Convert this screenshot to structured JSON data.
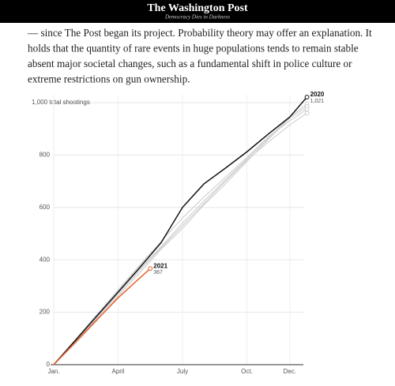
{
  "header": {
    "title": "The Washington Post",
    "tagline": "Democracy Dies in Darkness"
  },
  "article": {
    "lines": [
      "— since The Post began its project. Probability theory may offer an explanation. It",
      "holds that the quantity of rare events in huge populations tends to remain stable",
      "absent major societal changes, such as a fundamental shift in police culture or",
      "extreme restrictions on gun ownership."
    ]
  },
  "chart_data": {
    "type": "line",
    "xlim": [
      0,
      12
    ],
    "xticks": [
      {
        "value": 0,
        "label": "Jan."
      },
      {
        "value": 3,
        "label": "April"
      },
      {
        "value": 6,
        "label": "July"
      },
      {
        "value": 9,
        "label": "Oct."
      },
      {
        "value": 11,
        "label": "Dec."
      }
    ],
    "ylim": [
      0,
      1030
    ],
    "yticks": [
      0,
      200,
      400,
      600,
      800,
      {
        "value": 1000,
        "label": "1,000 total shootings"
      }
    ],
    "grid": true,
    "series": [
      {
        "color": "#cfcfcf",
        "x": [
          0,
          1,
          2,
          3,
          4,
          5,
          6,
          7,
          8,
          9,
          10,
          11,
          11.8
        ],
        "values": [
          0,
          88,
          178,
          272,
          365,
          450,
          540,
          625,
          705,
          785,
          865,
          945,
          995
        ]
      },
      {
        "color": "#cfcfcf",
        "x": [
          0,
          1,
          2,
          3,
          4,
          5,
          6,
          7,
          8,
          9,
          10,
          11,
          11.8
        ],
        "values": [
          0,
          80,
          168,
          262,
          350,
          440,
          520,
          610,
          690,
          775,
          860,
          940,
          985
        ]
      },
      {
        "color": "#cfcfcf",
        "x": [
          0,
          1,
          2,
          3,
          4,
          5,
          6,
          7,
          8,
          9,
          10,
          11,
          11.8
        ],
        "values": [
          0,
          95,
          190,
          285,
          380,
          470,
          560,
          640,
          715,
          790,
          870,
          930,
          975
        ]
      },
      {
        "color": "#cfcfcf",
        "x": [
          0,
          1,
          2,
          3,
          4,
          5,
          6,
          7,
          8,
          9,
          10,
          11,
          11.8
        ],
        "values": [
          0,
          85,
          175,
          270,
          360,
          445,
          530,
          615,
          700,
          780,
          850,
          915,
          960
        ]
      },
      {
        "name": "2020",
        "color": "#111111",
        "x": [
          0,
          1,
          2,
          3,
          4,
          5,
          6,
          7,
          8,
          9,
          10,
          11,
          11.8
        ],
        "values": [
          0,
          92,
          185,
          277,
          370,
          465,
          600,
          690,
          750,
          812,
          880,
          945,
          1021
        ],
        "value_labels": [
          null,
          null,
          null,
          null,
          null,
          null,
          null,
          null,
          null,
          null,
          null,
          null,
          "1,021"
        ]
      },
      {
        "name": "2021",
        "color": "#e8602c",
        "x": [
          0,
          1,
          2,
          3,
          4,
          4.5
        ],
        "values": [
          0,
          85,
          170,
          255,
          330,
          367
        ],
        "value_labels": [
          null,
          null,
          null,
          null,
          null,
          "367"
        ]
      }
    ]
  }
}
